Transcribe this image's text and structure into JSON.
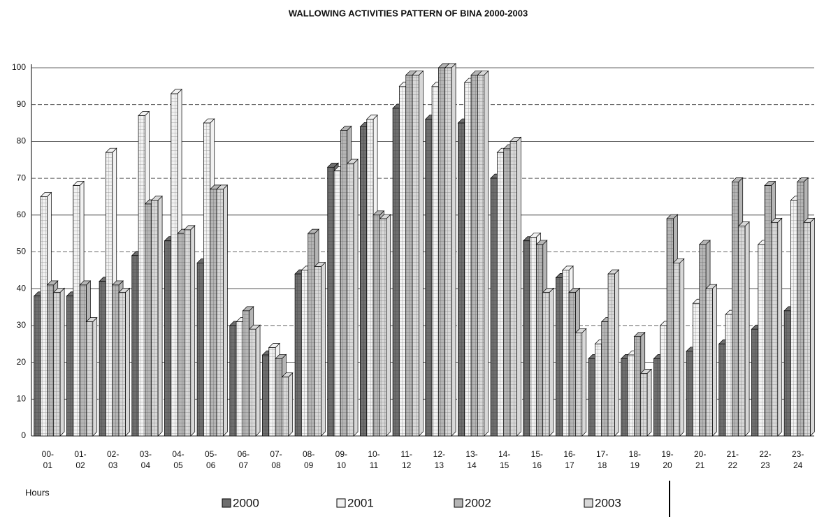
{
  "chart_data": {
    "type": "bar3d",
    "title": "WALLOWING ACTIVITIES PATTERN OF BINA 2000-2003",
    "x_label": "Hours",
    "categories": [
      "00- 01",
      "01- 02",
      "02- 03",
      "03- 04",
      "04- 05",
      "05- 06",
      "06- 07",
      "07- 08",
      "08- 09",
      "09- 10",
      "10- 11",
      "11- 12",
      "12- 13",
      "13- 14",
      "14- 15",
      "15- 16",
      "16- 17",
      "17- 18",
      "18- 19",
      "19- 20",
      "20- 21",
      "21- 22",
      "22- 23",
      "23- 24"
    ],
    "series": [
      {
        "name": "2000",
        "color": "#6e6e6e",
        "values": [
          38,
          38,
          42,
          49,
          53,
          47,
          30,
          22,
          44,
          73,
          84,
          89,
          86,
          85,
          70,
          53,
          43,
          21,
          21,
          21,
          23,
          25,
          29,
          34
        ]
      },
      {
        "name": "2001",
        "color": "#f2f2f2",
        "values": [
          65,
          68,
          77,
          87,
          93,
          85,
          31,
          24,
          45,
          72,
          86,
          95,
          95,
          96,
          77,
          54,
          45,
          25,
          22,
          30,
          36,
          33,
          52,
          64
        ]
      },
      {
        "name": "2002",
        "color": "#b5b5b5",
        "values": [
          41,
          41,
          41,
          63,
          55,
          67,
          34,
          21,
          55,
          83,
          60,
          98,
          100,
          98,
          78,
          52,
          39,
          31,
          27,
          59,
          52,
          69,
          68,
          69
        ]
      },
      {
        "name": "2003",
        "color": "#d8d8d8",
        "values": [
          39,
          31,
          39,
          64,
          56,
          67,
          29,
          16,
          46,
          74,
          59,
          98,
          100,
          98,
          80,
          39,
          28,
          44,
          17,
          47,
          40,
          57,
          58,
          58
        ]
      }
    ],
    "ylim": [
      0,
      100
    ],
    "yticks": [
      0,
      10,
      20,
      30,
      40,
      50,
      60,
      70,
      80,
      90,
      100
    ],
    "grid": true
  }
}
